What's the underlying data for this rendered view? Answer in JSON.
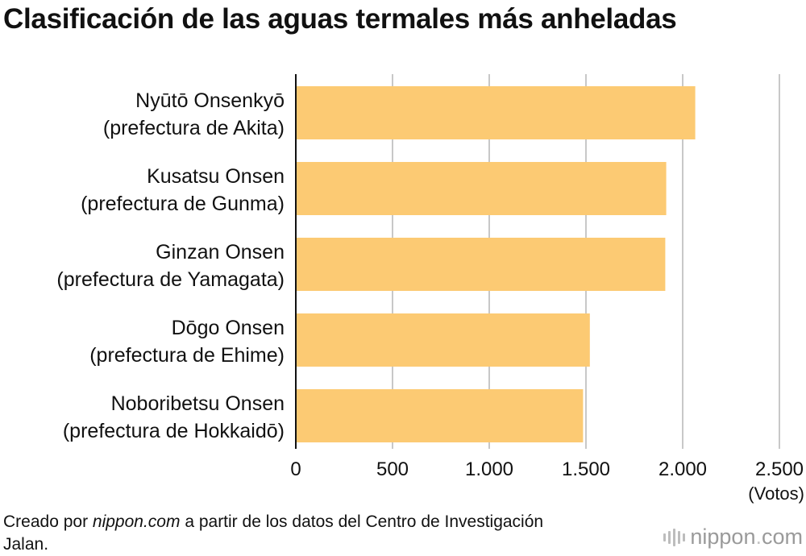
{
  "chart_data": {
    "type": "bar",
    "orientation": "horizontal",
    "title": "Clasificación de las aguas termales más anheladas",
    "categories": [
      [
        "Nyūtō Onsenkyō",
        "(prefectura de Akita)"
      ],
      [
        "Kusatsu Onsen",
        "(prefectura de Gunma)"
      ],
      [
        "Ginzan Onsen",
        "(prefectura de Yamagata)"
      ],
      [
        "Dōgo Onsen",
        "(prefectura de Ehime)"
      ],
      [
        "Noboribetsu Onsen",
        "(prefectura de Hokkaidō)"
      ]
    ],
    "values": [
      2065,
      1915,
      1910,
      1520,
      1485
    ],
    "xlim": [
      0,
      2500
    ],
    "xticks": [
      0,
      500,
      1000,
      1500,
      2000,
      2500
    ],
    "xtick_labels": [
      "0",
      "500",
      "1.000",
      "1.500",
      "2.000",
      "2.500"
    ],
    "xlabel": "(Votos)",
    "bar_color": "#fcca73",
    "grid": "vertical",
    "legend": "none"
  },
  "footer": {
    "source_prefix": "Creado por ",
    "source_site": "nippon.com",
    "source_suffix": " a partir de los datos del Centro de Investigación Jalan.",
    "brand_name": "nippon",
    "brand_dot": ".",
    "brand_tld": "com"
  }
}
